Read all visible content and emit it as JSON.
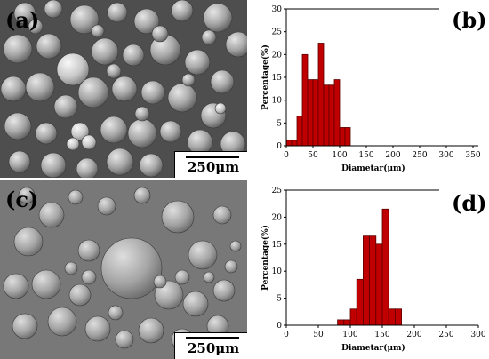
{
  "panels": {
    "a": {
      "label": "(a)",
      "scale": "250μm"
    },
    "b": {
      "label": "(b)"
    },
    "c": {
      "label": "(c)",
      "scale": "250μm"
    },
    "d": {
      "label": "(d)"
    }
  },
  "colors": {
    "bar_fill": "#c00000",
    "bar_edge": "#5a0000",
    "axis": "#000000"
  },
  "chart_data": [
    {
      "type": "bar",
      "panel": "b",
      "ylabel": "Percentage(%)",
      "xlabel": "Diametar(μm)",
      "xlim": [
        0,
        360
      ],
      "ylim": [
        0,
        30
      ],
      "xticks": [
        0,
        50,
        100,
        150,
        200,
        250,
        300,
        350
      ],
      "yticks": [
        0,
        5,
        10,
        15,
        20,
        25,
        30
      ],
      "bin_width": 10,
      "bins": [
        {
          "x": 0,
          "value": 1.2
        },
        {
          "x": 10,
          "value": 1.2
        },
        {
          "x": 20,
          "value": 6.5
        },
        {
          "x": 30,
          "value": 20
        },
        {
          "x": 40,
          "value": 14.5
        },
        {
          "x": 50,
          "value": 14.5
        },
        {
          "x": 60,
          "value": 22.5
        },
        {
          "x": 70,
          "value": 13.3
        },
        {
          "x": 80,
          "value": 13.3
        },
        {
          "x": 90,
          "value": 14.5
        },
        {
          "x": 100,
          "value": 4
        },
        {
          "x": 110,
          "value": 4
        }
      ]
    },
    {
      "type": "bar",
      "panel": "d",
      "ylabel": "Percentage(%)",
      "xlabel": "Diametar(μm)",
      "xlim": [
        0,
        300
      ],
      "ylim": [
        0,
        25
      ],
      "xticks": [
        0,
        50,
        100,
        150,
        200,
        250,
        300
      ],
      "yticks": [
        0,
        5,
        10,
        15,
        20,
        25
      ],
      "bin_width": 10,
      "bins": [
        {
          "x": 80,
          "value": 1
        },
        {
          "x": 90,
          "value": 1
        },
        {
          "x": 100,
          "value": 3
        },
        {
          "x": 110,
          "value": 8.5
        },
        {
          "x": 120,
          "value": 16.5
        },
        {
          "x": 130,
          "value": 16.5
        },
        {
          "x": 140,
          "value": 15
        },
        {
          "x": 150,
          "value": 21.5
        },
        {
          "x": 160,
          "value": 3
        },
        {
          "x": 170,
          "value": 3
        }
      ]
    }
  ]
}
